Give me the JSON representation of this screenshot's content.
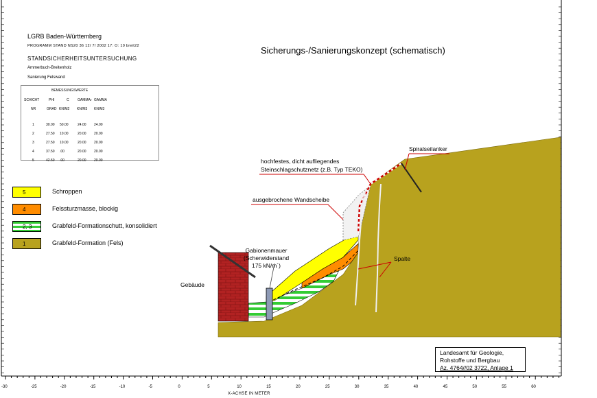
{
  "header": {
    "org": "LGRB Baden-Württemberg",
    "program_line": "PROGRAMM  STAND  NS20   36   12/   7/ 2002    17:   O:  10   breit22",
    "study_title": "STANDSICHERHEITSUNTERSUCHUNG",
    "location": "Ammerbuch-Breitenholz",
    "subject": "Sanierung  Felswand"
  },
  "title": "Sicherungs-/Sanierungskonzept (schematisch)",
  "param_table": {
    "caption": "BEMESSUNGSWERTE",
    "header_row1": [
      "SCHICHT",
      "PHI",
      "C",
      "GAMMAr",
      "GAMMA"
    ],
    "header_row2": [
      "NR",
      "GRAD",
      "KN/M2",
      "KN/M3",
      "KN/M3"
    ],
    "rows": [
      [
        "1",
        "30.00",
        "50.00",
        "24.00",
        "24.00"
      ],
      [
        "2",
        "27.50",
        "10.00",
        "20.00",
        "20.00"
      ],
      [
        "3",
        "27.50",
        "10.00",
        "20.00",
        "20.00"
      ],
      [
        "4",
        "37.50",
        ".00",
        "20.00",
        "20.00"
      ],
      [
        "5",
        "42.50",
        ".00",
        "20.00",
        "20.00"
      ]
    ]
  },
  "legend": [
    {
      "code": "5",
      "label": "Schroppen",
      "color": "#ffff00",
      "pattern": "solid"
    },
    {
      "code": "4",
      "label": "Felssturzmasse, blockig",
      "color": "#ff8c00",
      "pattern": "solid"
    },
    {
      "code": "2, 3",
      "label": "Grabfeld-Formationschutt, konsolidiert",
      "color": "#33cc33",
      "pattern": "stripes"
    },
    {
      "code": "1",
      "label": "Grabfeld-Formation (Fels)",
      "color": "#b8a21e",
      "pattern": "solid"
    }
  ],
  "annotations": {
    "net_line1": "hochfestes, dicht aufliegendes",
    "net_line2": "Steinschlagschutznetz (z.B. Typ TEKO)",
    "anchor": "Spiralseilanker",
    "broken_slab": "ausgebrochene Wandscheibe",
    "gabion_line1": "Gabionenmauer",
    "gabion_line2": "(Scherwiderstand",
    "gabion_line3": "175 kN/m´)",
    "building": "Gebäude",
    "crack": "Spalte"
  },
  "footer": {
    "line1": "Landesamt für Geologie,",
    "line2": "Rohstoffe und Bergbau",
    "line3": "Az. 4764//02 3722, Anlage 1"
  },
  "x_axis": {
    "label": "X-ACHSE  IN  METER",
    "ticks": [
      "-30",
      "-25",
      "-20",
      "-15",
      "-10",
      "-5",
      "0",
      "5",
      "10",
      "15",
      "20",
      "25",
      "30",
      "35",
      "40",
      "45",
      "50",
      "55",
      "60"
    ]
  },
  "colors": {
    "rock": "#b8a21e",
    "yellow": "#ffff00",
    "orange": "#ff8c00",
    "green": "#33cc33",
    "brick": "#b22222",
    "net_red": "#cc0000",
    "gabion": "#8e9ab5"
  }
}
